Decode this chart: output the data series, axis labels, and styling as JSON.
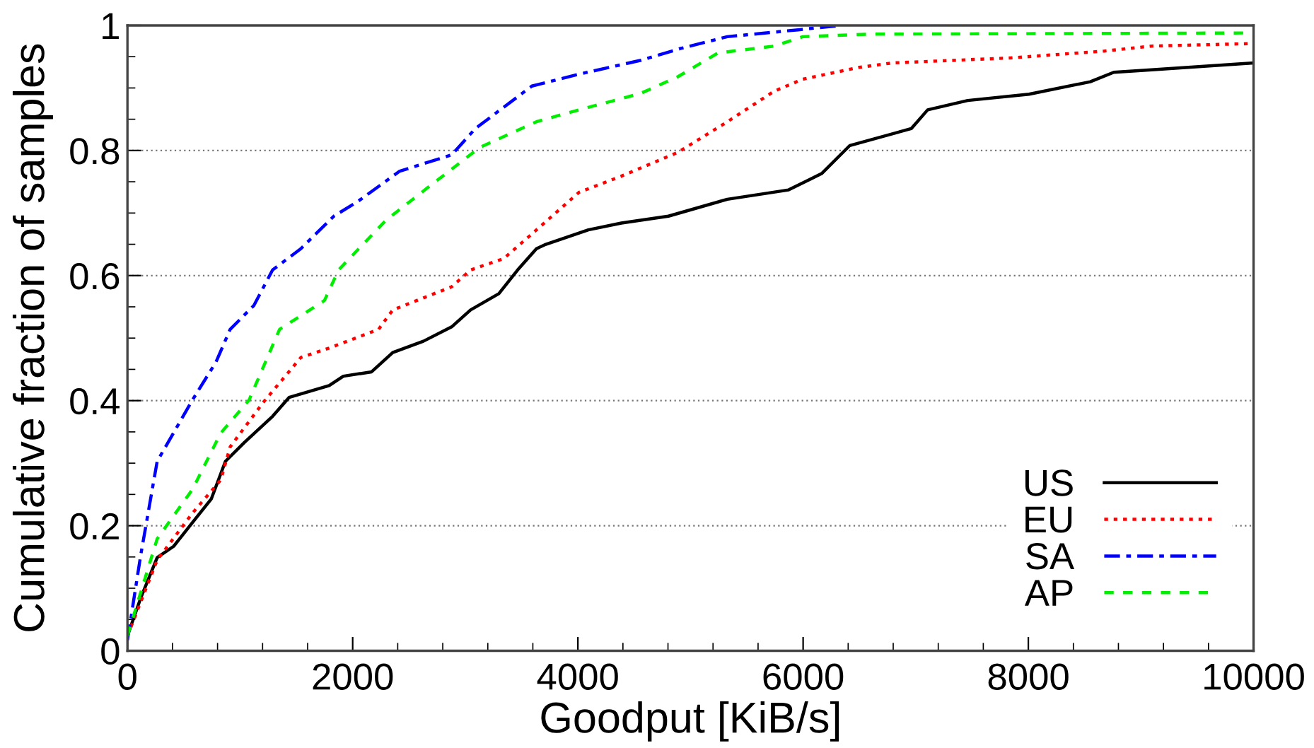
{
  "chart_data": {
    "type": "line",
    "xlabel": "Goodput [KiB/s]",
    "ylabel": "Cumulative fraction of samples",
    "xlim": [
      0,
      10000
    ],
    "ylim": [
      0,
      1
    ],
    "xticks": [
      0,
      {
        "value": 400,
        "label": null
      },
      {
        "value": 800,
        "label": null
      },
      {
        "value": 1200,
        "label": null
      },
      {
        "value": 1600,
        "label": null
      },
      2000,
      {
        "value": 2400,
        "label": null
      },
      {
        "value": 2800,
        "label": null
      },
      {
        "value": 3200,
        "label": null
      },
      {
        "value": 3600,
        "label": null
      },
      4000,
      {
        "value": 4400,
        "label": null
      },
      {
        "value": 4800,
        "label": null
      },
      {
        "value": 5200,
        "label": null
      },
      {
        "value": 5600,
        "label": null
      },
      6000,
      {
        "value": 6400,
        "label": null
      },
      {
        "value": 6800,
        "label": null
      },
      {
        "value": 7200,
        "label": null
      },
      {
        "value": 7600,
        "label": null
      },
      8000,
      {
        "value": 8400,
        "label": null
      },
      {
        "value": 8800,
        "label": null
      },
      {
        "value": 9200,
        "label": null
      },
      {
        "value": 9600,
        "label": null
      },
      10000
    ],
    "yticks": [
      0,
      {
        "value": 0.05,
        "label": null
      },
      {
        "value": 0.1,
        "label": null
      },
      {
        "value": 0.15,
        "label": null
      },
      0.2,
      {
        "value": 0.25,
        "label": null
      },
      {
        "value": 0.3,
        "label": null
      },
      {
        "value": 0.35,
        "label": null
      },
      0.4,
      {
        "value": 0.45,
        "label": null
      },
      {
        "value": 0.5,
        "label": null
      },
      {
        "value": 0.55,
        "label": null
      },
      0.6,
      {
        "value": 0.65,
        "label": null
      },
      {
        "value": 0.7,
        "label": null
      },
      {
        "value": 0.75,
        "label": null
      },
      0.8,
      {
        "value": 0.85,
        "label": null
      },
      {
        "value": 0.9,
        "label": null
      },
      {
        "value": 0.95,
        "label": null
      },
      1
    ],
    "grid": "y",
    "legend": "bottom right",
    "marker": "none",
    "series": [
      {
        "name": "US",
        "color": "#000000",
        "line_style": "solid",
        "x": [
          0,
          117,
          264,
          410,
          577,
          745,
          870,
          1038,
          1289,
          1435,
          1791,
          1917,
          2168,
          2356,
          2628,
          2879,
          3047,
          3298,
          3465,
          3632,
          3716,
          4093,
          4386,
          4804,
          5327,
          5871,
          6164,
          6415,
          6960,
          7106,
          7462,
          8006,
          8550,
          8759,
          9094,
          9994
        ],
        "values": [
          0.024,
          0.084,
          0.149,
          0.167,
          0.205,
          0.243,
          0.303,
          0.333,
          0.375,
          0.405,
          0.424,
          0.439,
          0.446,
          0.477,
          0.495,
          0.518,
          0.545,
          0.571,
          0.609,
          0.643,
          0.65,
          0.673,
          0.684,
          0.695,
          0.722,
          0.737,
          0.763,
          0.808,
          0.835,
          0.865,
          0.88,
          0.89,
          0.91,
          0.925,
          0.929,
          0.94
        ]
      },
      {
        "name": "EU",
        "color": "#ff0000",
        "line_style": "dotted",
        "x": [
          0,
          264,
          577,
          828,
          912,
          1205,
          1540,
          1791,
          2230,
          2356,
          2879,
          3047,
          3340,
          3632,
          4009,
          4386,
          4888,
          5327,
          5745,
          5997,
          6499,
          6792,
          7838,
          8675,
          9094,
          9994
        ],
        "values": [
          0.024,
          0.145,
          0.22,
          0.273,
          0.326,
          0.397,
          0.469,
          0.484,
          0.514,
          0.545,
          0.582,
          0.609,
          0.627,
          0.673,
          0.733,
          0.759,
          0.797,
          0.846,
          0.895,
          0.914,
          0.933,
          0.94,
          0.948,
          0.959,
          0.967,
          0.971
        ]
      },
      {
        "name": "SA",
        "color": "#0000ff",
        "line_style": "dashdot",
        "x": [
          0,
          117,
          264,
          577,
          787,
          912,
          1122,
          1289,
          1540,
          1833,
          2042,
          2418,
          2879,
          3089,
          3591,
          4009,
          4553,
          4909,
          5327,
          5955,
          6332
        ],
        "values": [
          0.017,
          0.152,
          0.303,
          0.401,
          0.462,
          0.514,
          0.552,
          0.609,
          0.643,
          0.695,
          0.718,
          0.767,
          0.793,
          0.835,
          0.903,
          0.922,
          0.944,
          0.963,
          0.982,
          0.993,
          1.0
        ]
      },
      {
        "name": "AP",
        "color": "#00ee00",
        "line_style": "dashed",
        "x": [
          0,
          264,
          577,
          828,
          1080,
          1351,
          1749,
          1875,
          2293,
          2669,
          3130,
          3632,
          4009,
          4553,
          4888,
          5244,
          5745,
          5997,
          6583,
          9994
        ],
        "values": [
          0.024,
          0.179,
          0.258,
          0.348,
          0.401,
          0.514,
          0.56,
          0.609,
          0.688,
          0.741,
          0.805,
          0.846,
          0.865,
          0.891,
          0.918,
          0.956,
          0.967,
          0.982,
          0.986,
          0.988
        ]
      }
    ]
  }
}
